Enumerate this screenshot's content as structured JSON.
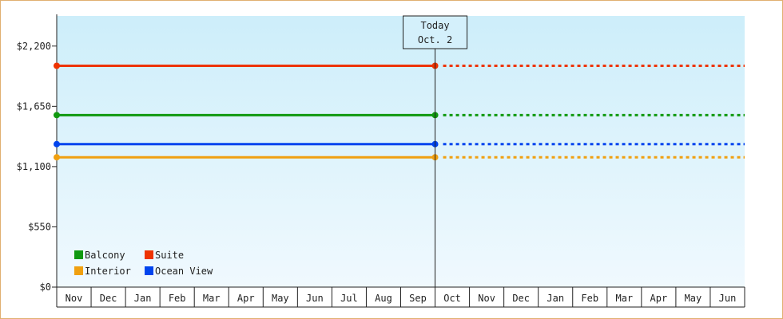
{
  "chart_data": {
    "type": "line",
    "y_ticks": [
      "$0",
      "$550",
      "$1,100",
      "$1,650",
      "$2,200"
    ],
    "ylim": [
      0,
      2475
    ],
    "months": [
      "Nov",
      "Dec",
      "Jan",
      "Feb",
      "Mar",
      "Apr",
      "May",
      "Jun",
      "Jul",
      "Aug",
      "Sep",
      "Oct",
      "Nov",
      "Dec",
      "Jan",
      "Feb",
      "Mar",
      "Apr",
      "May",
      "Jun"
    ],
    "today": {
      "label_line1": "Today",
      "label_line2": "Oct. 2",
      "month_index": 11
    },
    "series": [
      {
        "name": "Suite",
        "color": "#ee3300",
        "value": 2020
      },
      {
        "name": "Balcony",
        "color": "#109910",
        "value": 1570
      },
      {
        "name": "Ocean View",
        "color": "#0044ee",
        "value": 1305
      },
      {
        "name": "Interior",
        "color": "#f0a010",
        "value": 1185
      }
    ],
    "legend": [
      {
        "name": "Balcony",
        "color": "#109910"
      },
      {
        "name": "Suite",
        "color": "#ee3300"
      },
      {
        "name": "Interior",
        "color": "#f0a010"
      },
      {
        "name": "Ocean View",
        "color": "#0044ee"
      }
    ],
    "grid": false,
    "legend_placement": "bottom-left"
  }
}
